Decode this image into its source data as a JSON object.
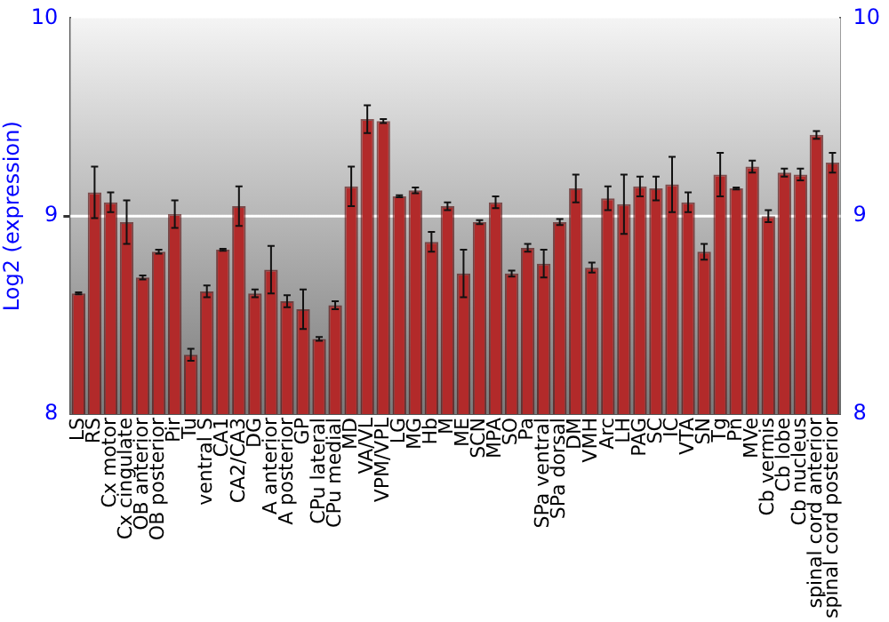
{
  "chart_data": {
    "type": "bar",
    "ylabel": "Log2 (expression)",
    "categories": [
      "LS",
      "RS",
      "Cx motor",
      "Cx cingulate",
      "OB anterior",
      "OB posterior",
      "Pir",
      "Tu",
      "ventral S",
      "CA1",
      "CA2/CA3",
      "DG",
      "A anterior",
      "A posterior",
      "GP",
      "CPu lateral",
      "CPu medial",
      "MD",
      "VA/VL",
      "VPM/VPL",
      "LG",
      "MG",
      "Hb",
      "M",
      "ME",
      "SCN",
      "MPA",
      "SO",
      "Pa",
      "SPa ventral",
      "SPa dorsal",
      "DM",
      "VMH",
      "Arc",
      "LH",
      "PAG",
      "SC",
      "IC",
      "VTA",
      "SN",
      "Tg",
      "Pn",
      "MVe",
      "Cb vermis",
      "Cb lobe",
      "Cb nucleus",
      "spinal cord anterior",
      "spinal cord posterior"
    ],
    "values": [
      8.61,
      9.12,
      9.07,
      8.97,
      8.69,
      8.82,
      9.01,
      8.3,
      8.62,
      8.83,
      9.05,
      8.61,
      8.73,
      8.57,
      8.53,
      8.38,
      8.55,
      9.15,
      9.49,
      9.48,
      9.1,
      9.13,
      8.87,
      9.05,
      8.71,
      8.97,
      9.07,
      8.71,
      8.84,
      8.76,
      8.97,
      9.14,
      8.74,
      9.09,
      9.06,
      9.15,
      9.14,
      9.16,
      9.07,
      8.82,
      9.21,
      9.14,
      9.25,
      9.0,
      9.22,
      9.21,
      9.41,
      9.27
    ],
    "errors": [
      0.005,
      0.13,
      0.05,
      0.11,
      0.01,
      0.01,
      0.07,
      0.03,
      0.03,
      0.005,
      0.1,
      0.02,
      0.12,
      0.03,
      0.1,
      0.01,
      0.02,
      0.1,
      0.07,
      0.01,
      0.005,
      0.015,
      0.05,
      0.02,
      0.12,
      0.01,
      0.03,
      0.015,
      0.02,
      0.07,
      0.015,
      0.07,
      0.025,
      0.06,
      0.15,
      0.05,
      0.06,
      0.14,
      0.05,
      0.04,
      0.11,
      0.005,
      0.03,
      0.03,
      0.02,
      0.03,
      0.02,
      0.05
    ],
    "color": "#b22a2a",
    "ylim": [
      8,
      10
    ],
    "yticks": [
      8,
      9,
      10
    ],
    "y2lim": [
      8,
      10
    ],
    "y2ticks": [
      8,
      9,
      10
    ],
    "grid": "y",
    "legend": false
  }
}
